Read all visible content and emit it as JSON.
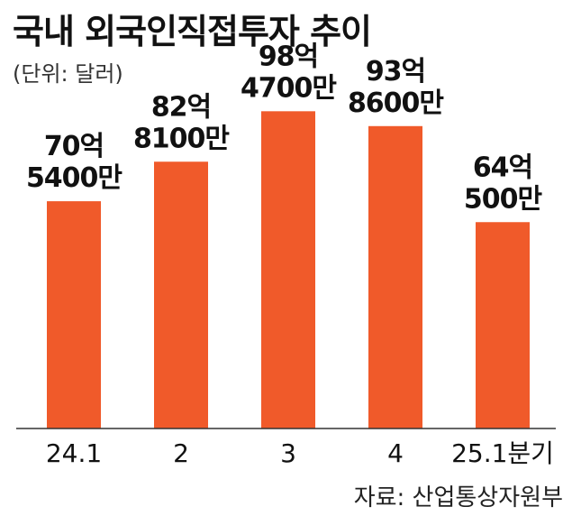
{
  "title": "국내 외국인직접투자 추이",
  "unit": "(단위: 달러)",
  "source": "자료: 산업통상자원부",
  "chart_data": {
    "type": "bar",
    "categories": [
      "24.1",
      "2",
      "3",
      "4",
      "25.1분기"
    ],
    "values": [
      7054000000,
      8281000000,
      9847000000,
      9386000000,
      6405000000
    ],
    "data_labels": [
      [
        "70억",
        "5400만"
      ],
      [
        "82억",
        "8100만"
      ],
      [
        "98억",
        "4700만"
      ],
      [
        "93억",
        "8600만"
      ],
      [
        "64억",
        "500만"
      ]
    ],
    "ylim": [
      0,
      10500000000
    ],
    "grid": false,
    "colors": {
      "bar": "#F05A2A",
      "axis": "#333333"
    }
  }
}
